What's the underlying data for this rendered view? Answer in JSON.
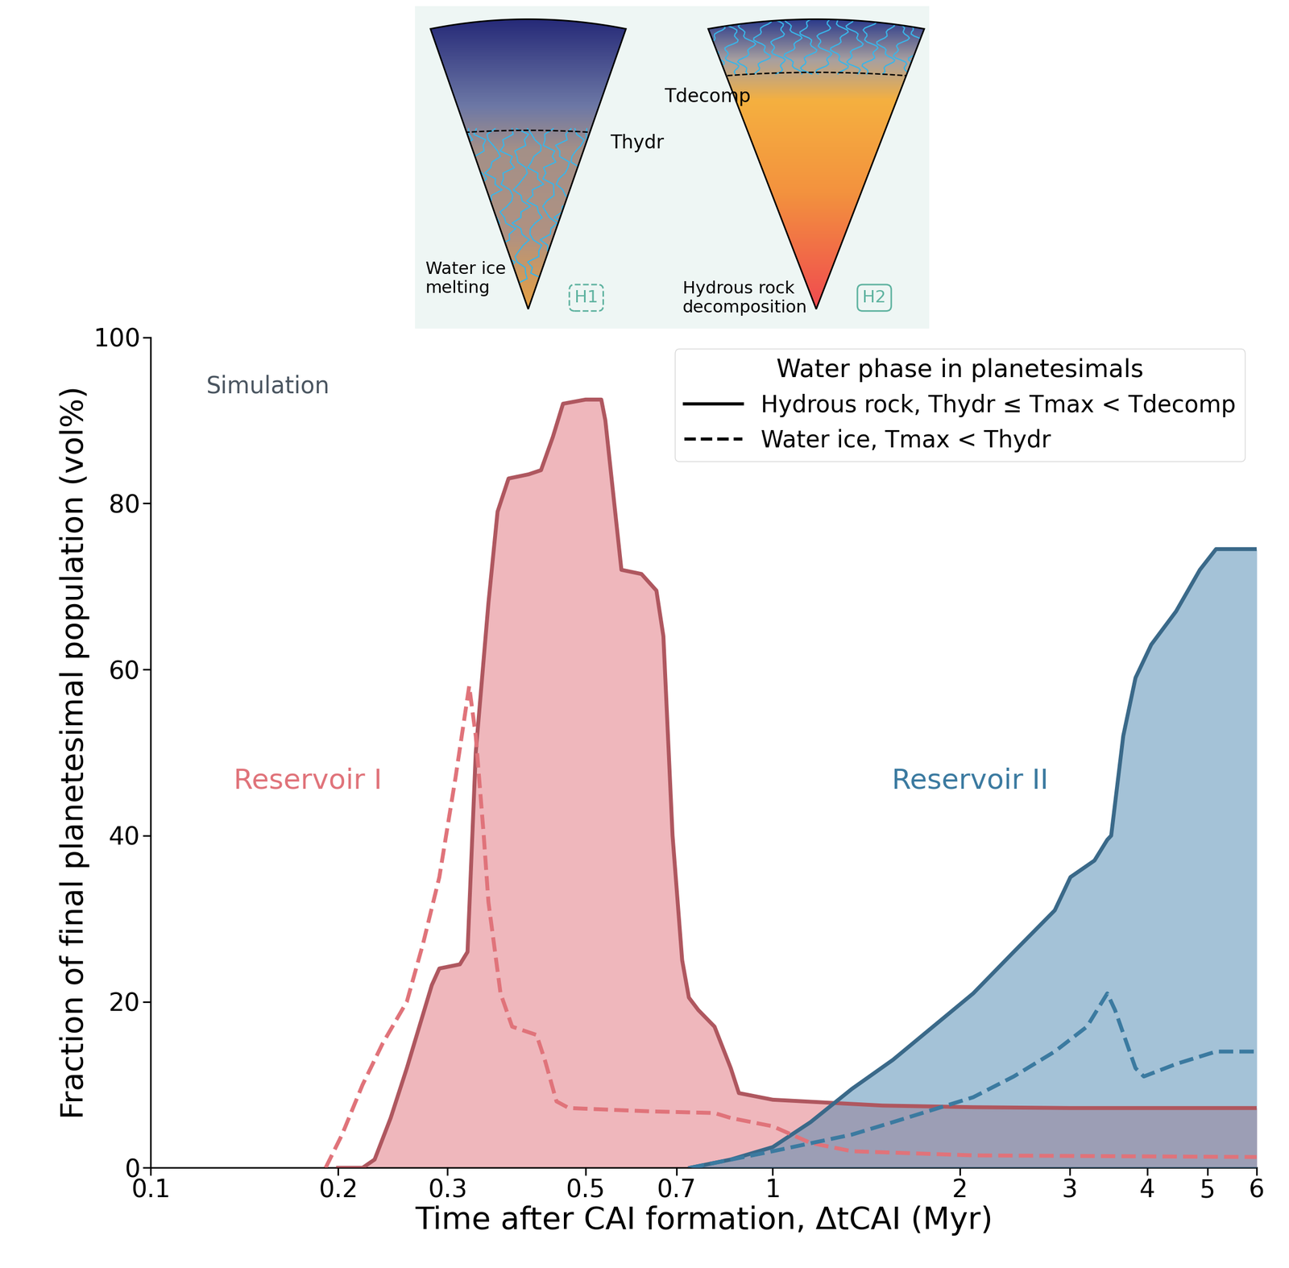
{
  "chart_data": {
    "type": "area",
    "x_label": "Time after CAI formation, ΔtCAI (Myr)",
    "y_label": "Fraction of final planetesimal population (vol%)",
    "annotation": "Simulation",
    "log": "x",
    "xlim": [
      0.1,
      6
    ],
    "xticks": [
      0.1,
      0.2,
      0.3,
      0.5,
      0.7,
      1,
      2,
      3,
      4,
      5,
      6
    ],
    "ylim": [
      0,
      100
    ],
    "yticks": [
      0,
      20,
      40,
      60,
      80,
      100
    ],
    "legend": "upper right",
    "legend_title": "Water phase in planetesimals",
    "legend_entries": [
      {
        "label": "Hydrous rock, Thydr ≤ Tmax < Tdecomp",
        "line_style": "solid"
      },
      {
        "label": "Water ice, Tmax < Thydr",
        "line_style": "dashed"
      }
    ],
    "series": [
      {
        "name": "Reservoir I",
        "type": "area",
        "color": "#e0707a",
        "line_style": "solid",
        "x": [
          0.2,
          0.219,
          0.229,
          0.243,
          0.258,
          0.283,
          0.291,
          0.314,
          0.323,
          0.333,
          0.349,
          0.361,
          0.376,
          0.405,
          0.424,
          0.443,
          0.46,
          0.5,
          0.53,
          0.538,
          0.571,
          0.615,
          0.65,
          0.667,
          0.69,
          0.715,
          0.733,
          0.759,
          0.806,
          0.856,
          0.882,
          1.0,
          1.5,
          2.1,
          3,
          6
        ],
        "values": [
          0,
          0,
          1,
          6,
          12,
          22,
          24,
          24.5,
          26,
          50,
          68,
          79,
          83,
          83.5,
          84,
          88,
          92,
          92.5,
          92.5,
          90,
          72,
          71.5,
          69.5,
          64,
          40,
          25,
          20.5,
          19,
          17,
          12,
          9,
          8.2,
          7.5,
          7.3,
          7.2,
          7.2
        ]
      },
      {
        "name": "Reservoir I",
        "type": "line",
        "color": "#e0737a",
        "line_style": "dashed",
        "x": [
          0.191,
          0.203,
          0.219,
          0.236,
          0.258,
          0.274,
          0.291,
          0.309,
          0.325,
          0.333,
          0.343,
          0.349,
          0.365,
          0.381,
          0.417,
          0.43,
          0.449,
          0.47,
          0.635,
          0.806,
          0.856,
          1.0,
          1.15,
          1.34,
          2.1,
          6
        ],
        "values": [
          0,
          4,
          10,
          15,
          20,
          27,
          35,
          47,
          58,
          52,
          40,
          32,
          21,
          17,
          16,
          13,
          8,
          7.2,
          6.8,
          6.6,
          6,
          5,
          3,
          2,
          1.5,
          1.3
        ]
      },
      {
        "name": "Reservoir II",
        "type": "area",
        "color": "#4a86b0",
        "line_style": "solid",
        "x": [
          0.736,
          0.856,
          1.0,
          1.15,
          1.34,
          1.56,
          1.81,
          2.1,
          2.44,
          2.84,
          3.01,
          3.29,
          3.45,
          3.5,
          3.66,
          3.83,
          4.06,
          4.45,
          4.86,
          5.16,
          5.3,
          6
        ],
        "values": [
          0,
          1,
          2.5,
          5.5,
          9.5,
          13,
          17,
          21,
          26,
          31,
          35,
          37,
          39.5,
          40,
          52,
          59,
          63,
          67,
          72,
          74.5,
          74.5,
          74.5
        ]
      },
      {
        "name": "Reservoir II",
        "type": "line",
        "color": "#3b7aa0",
        "line_style": "dashed",
        "x": [
          0.736,
          1.0,
          1.34,
          1.56,
          1.81,
          2.1,
          2.44,
          2.84,
          3.2,
          3.45,
          3.55,
          3.83,
          3.95,
          4.45,
          5.16,
          6
        ],
        "values": [
          0,
          2,
          4,
          5.5,
          7,
          8.5,
          11,
          14,
          17,
          21,
          19,
          12,
          11,
          12.5,
          14,
          14
        ]
      }
    ]
  },
  "inset": {
    "left_panel": {
      "label": "Water ice\nmelting",
      "tag": "H1",
      "boundary": "Thydr"
    },
    "right_panel": {
      "label": "Hydrous rock\ndecomposition",
      "tag": "H2",
      "boundary": "Tdecomp"
    }
  }
}
